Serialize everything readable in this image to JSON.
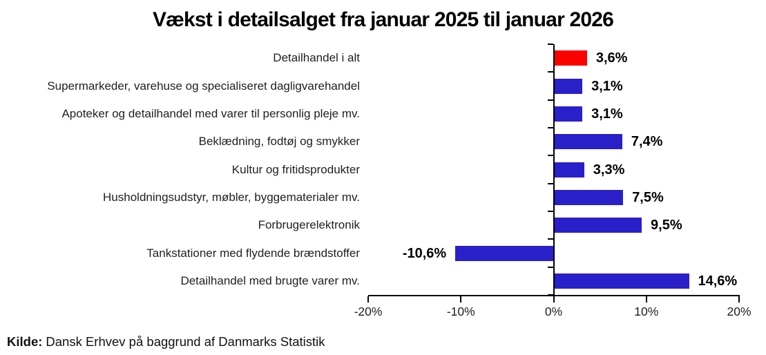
{
  "title": "Vækst i detailsalget fra januar 2025 til januar 2026",
  "source": {
    "label": "Kilde:",
    "text": "Dansk Erhvev på baggrund af Danmarks Statistik"
  },
  "colors": {
    "bar_default": "#2a20c9",
    "bar_highlight": "#fa0200",
    "axis": "#000000",
    "text": "#1f1f1f"
  },
  "chart_data": {
    "type": "bar",
    "orientation": "horizontal",
    "title": "Vækst i detailsalget fra januar 2025 til januar 2026",
    "categories": [
      "Detailhandel i alt",
      "Supermarkeder, varehuse og specialiseret dagligvarehandel",
      "Apoteker og detailhandel med varer til personlig pleje mv.",
      "Beklædning, fodtøj og smykker",
      "Kultur og fritidsprodukter",
      "Husholdningsudstyr, møbler, byggematerialer mv.",
      "Forbrugerelektronik",
      "Tankstationer med flydende brændstoffer",
      "Detailhandel med brugte varer mv."
    ],
    "values": [
      3.6,
      3.1,
      3.1,
      7.4,
      3.3,
      7.5,
      9.5,
      -10.6,
      14.6
    ],
    "value_labels": [
      "3,6%",
      "3,1%",
      "3,1%",
      "7,4%",
      "3,3%",
      "7,5%",
      "9,5%",
      "-10,6%",
      "14,6%"
    ],
    "highlight_index": 0,
    "xlim": [
      -20,
      20
    ],
    "x_ticks": [
      -20,
      -10,
      0,
      10,
      20
    ],
    "x_tick_labels": [
      "-20%",
      "-10%",
      "0%",
      "10%",
      "20%"
    ],
    "grid": false,
    "legend": false,
    "unit": "%"
  }
}
